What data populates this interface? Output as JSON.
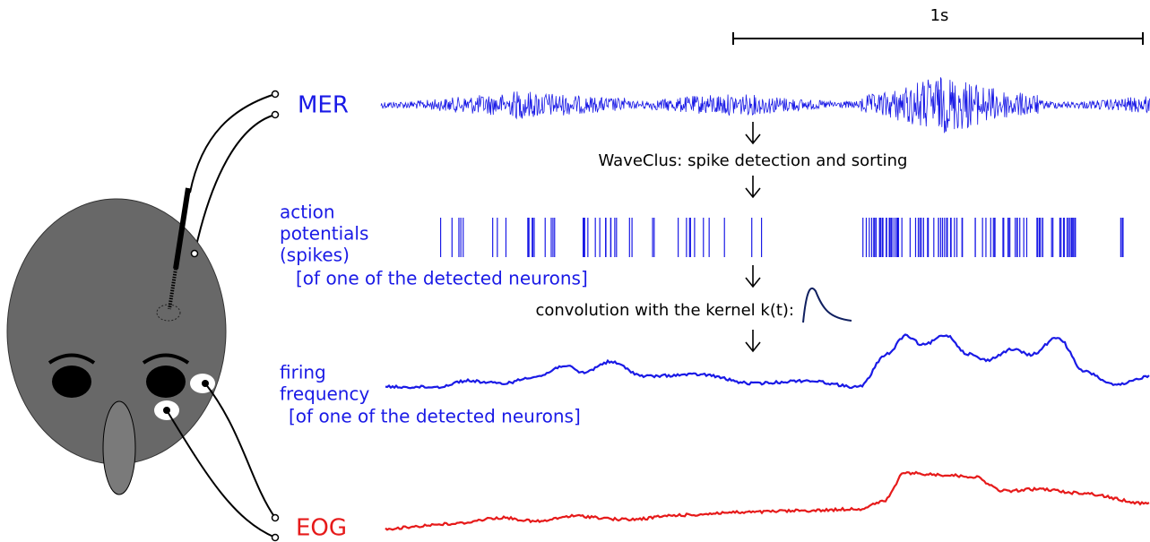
{
  "scale_bar": {
    "label": "1s"
  },
  "signals": {
    "mer": {
      "label": "MER"
    },
    "step1": {
      "label": "WaveClus: spike detection and sorting"
    },
    "spikes": {
      "label_lines": [
        "action",
        "potentials",
        "(spikes)"
      ],
      "note": "[of one of the detected neurons]"
    },
    "step2": {
      "label": "convolution with the kernel k(t):"
    },
    "firing": {
      "label_lines": [
        "firing",
        "frequency"
      ],
      "note": "[of one of the detected neurons]"
    },
    "eog": {
      "label": "EOG"
    }
  }
}
